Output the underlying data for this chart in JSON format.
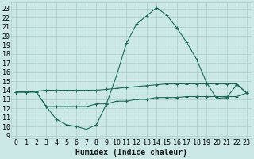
{
  "xlabel": "Humidex (Indice chaleur)",
  "background_color": "#cce8e6",
  "grid_color": "#aacfcc",
  "line_color": "#1a6b5a",
  "xlim": [
    -0.5,
    23.5
  ],
  "ylim": [
    8.7,
    23.7
  ],
  "yticks": [
    9,
    10,
    11,
    12,
    13,
    14,
    15,
    16,
    17,
    18,
    19,
    20,
    21,
    22,
    23
  ],
  "xticks": [
    0,
    1,
    2,
    3,
    4,
    5,
    6,
    7,
    8,
    9,
    10,
    11,
    12,
    13,
    14,
    15,
    16,
    17,
    18,
    19,
    20,
    21,
    22,
    23
  ],
  "series": [
    {
      "x": [
        0,
        1,
        2,
        3,
        4,
        5,
        6,
        7,
        8,
        9,
        10,
        11,
        12,
        13,
        14,
        15,
        16,
        17,
        18,
        19,
        20,
        21,
        22,
        23
      ],
      "y": [
        13.8,
        13.8,
        13.8,
        12.2,
        10.8,
        10.2,
        10.0,
        9.7,
        10.2,
        12.5,
        15.6,
        19.2,
        21.3,
        22.2,
        23.1,
        22.3,
        20.9,
        19.3,
        17.4,
        14.8,
        13.1,
        13.2,
        14.6,
        13.7
      ]
    },
    {
      "x": [
        0,
        1,
        2,
        3,
        4,
        5,
        6,
        7,
        8,
        9,
        10,
        11,
        12,
        13,
        14,
        15,
        16,
        17,
        18,
        19,
        20,
        21,
        22,
        23
      ],
      "y": [
        13.8,
        13.8,
        13.8,
        12.2,
        12.2,
        12.2,
        12.2,
        12.2,
        12.5,
        12.5,
        12.8,
        12.8,
        13.0,
        13.0,
        13.2,
        13.2,
        13.2,
        13.3,
        13.3,
        13.3,
        13.3,
        13.3,
        13.3,
        13.7
      ]
    },
    {
      "x": [
        0,
        1,
        2,
        3,
        4,
        5,
        6,
        7,
        8,
        9,
        10,
        11,
        12,
        13,
        14,
        15,
        16,
        17,
        18,
        19,
        20,
        21,
        22,
        23
      ],
      "y": [
        13.8,
        13.8,
        13.9,
        14.0,
        14.0,
        14.0,
        14.0,
        14.0,
        14.0,
        14.1,
        14.2,
        14.3,
        14.4,
        14.5,
        14.6,
        14.7,
        14.7,
        14.7,
        14.7,
        14.7,
        14.7,
        14.7,
        14.7,
        13.7
      ]
    }
  ],
  "xlabel_fontsize": 7,
  "tick_fontsize": 6
}
